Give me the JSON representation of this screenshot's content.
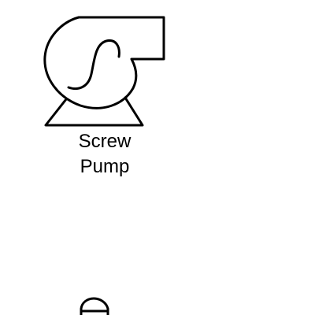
{
  "shapes": [
    {
      "icon": "screw-pump-icon",
      "label_lines": [
        "Screw",
        "Pump"
      ]
    },
    {
      "icon": "partial-shape-icon",
      "label_lines": []
    }
  ],
  "colors": {
    "background": "#ffffff",
    "stroke": "#000000",
    "text": "#000000"
  }
}
